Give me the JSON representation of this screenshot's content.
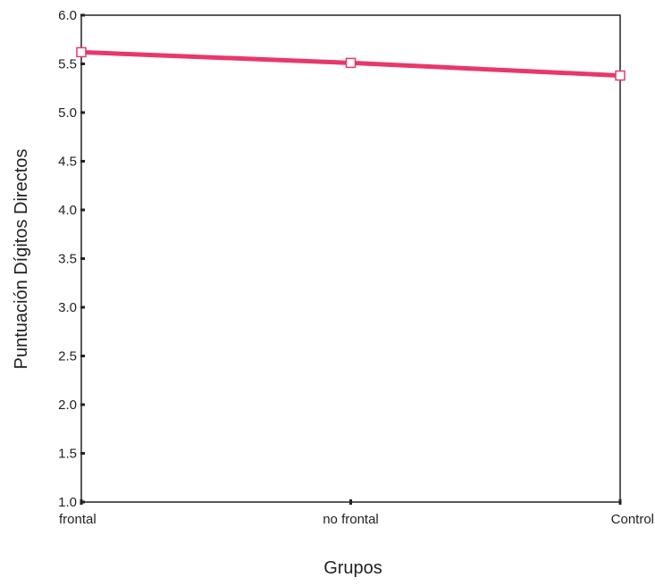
{
  "chart_data": {
    "type": "line",
    "title": "",
    "xlabel": "Grupos",
    "ylabel": "Puntuación Dígitos Directos",
    "categories": [
      "frontal",
      "no frontal",
      "Control"
    ],
    "series": [
      {
        "values": [
          5.62,
          5.51,
          5.38
        ]
      }
    ],
    "ylim": [
      1.0,
      6.0
    ],
    "yticks": [
      "1.0",
      "1.5",
      "2.0",
      "2.5",
      "3.0",
      "3.5",
      "4.0",
      "4.5",
      "5.0",
      "5.5",
      "6.0"
    ],
    "grid": false,
    "legend": "none",
    "colors": {
      "line": "#e8386a",
      "axis": "#222222",
      "text": "#222222"
    }
  }
}
